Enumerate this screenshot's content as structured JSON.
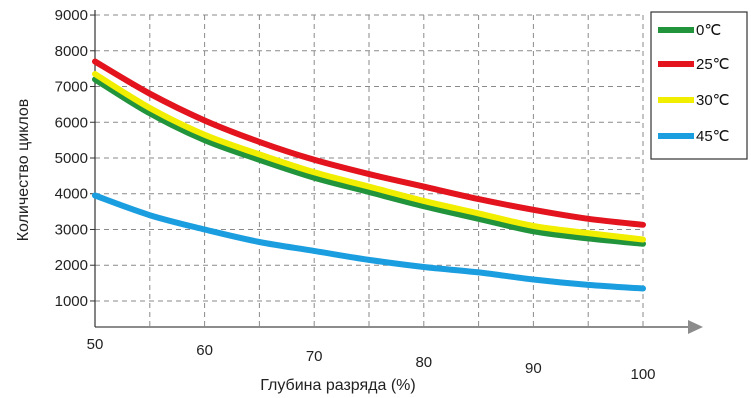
{
  "chart_data": {
    "type": "line",
    "xlabel": "Глубина разряда  (%)",
    "ylabel": "Количество циклов",
    "x_ticks": [
      "50",
      "60",
      "70",
      "80",
      "90",
      "100"
    ],
    "y_ticks": [
      "9000",
      "8000",
      "7000",
      "6000",
      "5000",
      "4000",
      "3000",
      "2000",
      "1000"
    ],
    "xlim": [
      50,
      100
    ],
    "ylim": [
      0,
      9000
    ],
    "grid": true,
    "legend_position": "top-right",
    "series": [
      {
        "name": "0℃",
        "color": "#22943c",
        "x": [
          50,
          55,
          60,
          65,
          70,
          75,
          80,
          85,
          90,
          95,
          100
        ],
        "y": [
          7200,
          6250,
          5500,
          4950,
          4450,
          4050,
          3650,
          3300,
          2950,
          2750,
          2600
        ]
      },
      {
        "name": "25℃",
        "color": "#e3141e",
        "x": [
          50,
          55,
          60,
          65,
          70,
          75,
          80,
          85,
          90,
          95,
          100
        ],
        "y": [
          7700,
          6800,
          6050,
          5450,
          4950,
          4550,
          4200,
          3850,
          3550,
          3300,
          3130
        ]
      },
      {
        "name": "30℃",
        "color": "#f2ee00",
        "x": [
          50,
          55,
          60,
          65,
          70,
          75,
          80,
          85,
          90,
          95,
          100
        ],
        "y": [
          7350,
          6400,
          5650,
          5100,
          4600,
          4200,
          3800,
          3450,
          3100,
          2900,
          2720
        ]
      },
      {
        "name": "45℃",
        "color": "#1a9ee0",
        "x": [
          50,
          55,
          60,
          65,
          70,
          75,
          80,
          85,
          90,
          95,
          100
        ],
        "y": [
          3950,
          3400,
          3000,
          2650,
          2400,
          2150,
          1950,
          1800,
          1600,
          1450,
          1350
        ]
      }
    ]
  }
}
